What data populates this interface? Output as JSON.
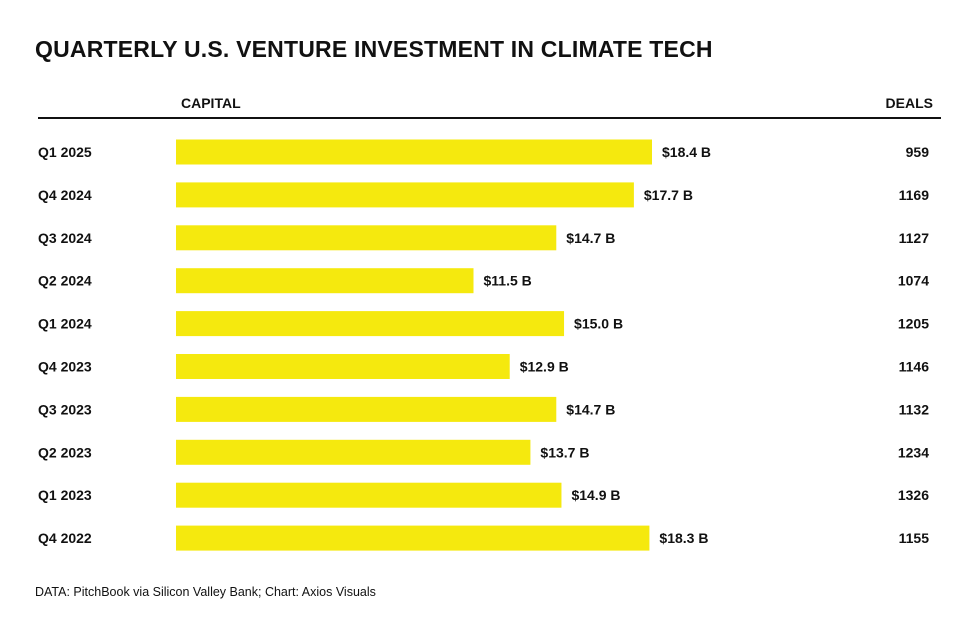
{
  "chart_data": {
    "type": "bar",
    "orientation": "horizontal",
    "title": "QUARTERLY U.S. VENTURE INVESTMENT IN CLIMATE TECH",
    "columns": {
      "capital": "CAPITAL",
      "deals": "DEALS"
    },
    "categories": [
      "Q1 2025",
      "Q4 2024",
      "Q3 2024",
      "Q2 2024",
      "Q1 2024",
      "Q4 2023",
      "Q3 2023",
      "Q2 2023",
      "Q1 2023",
      "Q4 2022"
    ],
    "series": [
      {
        "name": "Capital ($B)",
        "values": [
          18.4,
          17.7,
          14.7,
          11.5,
          15.0,
          12.9,
          14.7,
          13.7,
          14.9,
          18.3
        ]
      },
      {
        "name": "Deals",
        "values": [
          959,
          1169,
          1127,
          1074,
          1205,
          1146,
          1132,
          1234,
          1326,
          1155
        ]
      }
    ],
    "value_labels": [
      "$18.4 B",
      "$17.7 B",
      "$14.7 B",
      "$11.5 B",
      "$15.0 B",
      "$12.9 B",
      "$14.7 B",
      "$13.7 B",
      "$14.9 B",
      "$18.3 B"
    ],
    "bar_color": "#f5e90e",
    "xlim": [
      0,
      18.4
    ],
    "source": "DATA: PitchBook via Silicon Valley Bank; Chart: Axios Visuals"
  }
}
